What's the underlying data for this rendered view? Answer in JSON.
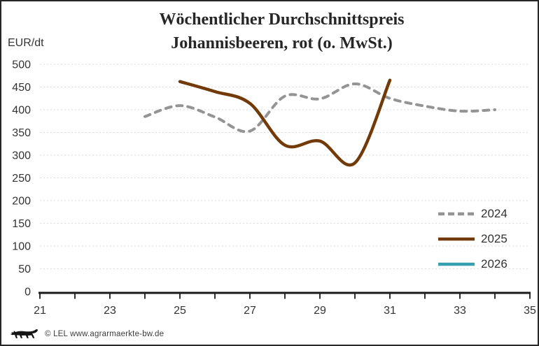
{
  "footer": {
    "credit": "© LEL www.agrarmaerkte-bw.de",
    "logo": "baden-wuerttemberg-lion"
  },
  "chart_data": {
    "type": "line",
    "title_line1": "Wöchentlicher Durchschnittspreis",
    "title_line2": "Johannisbeeren, rot (o. MwSt.)",
    "ylabel": "EUR/dt",
    "xlabel": "",
    "grid": "horizontal-dashed",
    "legend_position": "right-lower",
    "x_axis": {
      "min": 21,
      "max": 35,
      "minor_tick_step": 1,
      "labels": [
        21,
        23,
        25,
        27,
        29,
        31,
        33,
        35
      ]
    },
    "y_axis": {
      "min": 0,
      "max": 500,
      "tick_step": 50,
      "tick_labels": [
        0,
        50,
        100,
        150,
        200,
        250,
        300,
        350,
        400,
        450,
        500
      ]
    },
    "series": [
      {
        "name": "2024",
        "color": "#949494",
        "line_style": "dashed",
        "points": [
          [
            24,
            385
          ],
          [
            25,
            409
          ],
          [
            26,
            384
          ],
          [
            27,
            353
          ],
          [
            28,
            430
          ],
          [
            29,
            424
          ],
          [
            30,
            457
          ],
          [
            31,
            425
          ],
          [
            32,
            408
          ],
          [
            33,
            397
          ],
          [
            34,
            400
          ]
        ]
      },
      {
        "name": "2025",
        "color": "#713A08",
        "line_style": "solid",
        "points": [
          [
            25,
            462
          ],
          [
            26,
            440
          ],
          [
            27,
            414
          ],
          [
            28,
            322
          ],
          [
            29,
            331
          ],
          [
            30,
            283
          ],
          [
            31,
            465
          ]
        ]
      },
      {
        "name": "2026",
        "color": "#359FB0",
        "line_style": "solid",
        "points": []
      }
    ],
    "colors": {
      "grid": "#DADADA",
      "axis": "#1A1A1A",
      "tick_text": "#333333",
      "title_text": "#262626"
    }
  }
}
